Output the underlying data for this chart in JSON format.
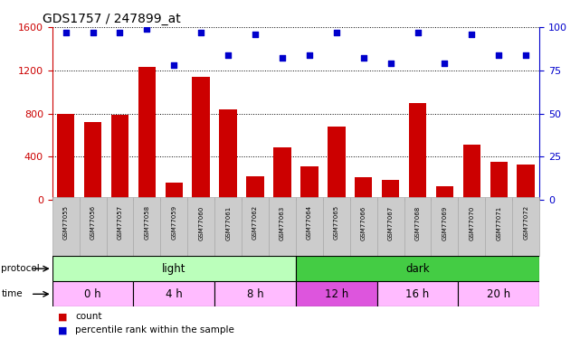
{
  "title": "GDS1757 / 247899_at",
  "samples": [
    "GSM77055",
    "GSM77056",
    "GSM77057",
    "GSM77058",
    "GSM77059",
    "GSM77060",
    "GSM77061",
    "GSM77062",
    "GSM77063",
    "GSM77064",
    "GSM77065",
    "GSM77066",
    "GSM77067",
    "GSM77068",
    "GSM77069",
    "GSM77070",
    "GSM77071",
    "GSM77072"
  ],
  "counts": [
    800,
    720,
    790,
    1230,
    160,
    1140,
    840,
    220,
    490,
    310,
    680,
    210,
    185,
    900,
    130,
    510,
    350,
    330
  ],
  "percentile": [
    97,
    97,
    97,
    99,
    78,
    97,
    84,
    96,
    82,
    84,
    97,
    82,
    79,
    97,
    79,
    96,
    84,
    84
  ],
  "bar_color": "#cc0000",
  "scatter_color": "#0000cc",
  "ylim_left": [
    0,
    1600
  ],
  "ylim_right": [
    0,
    100
  ],
  "yticks_left": [
    0,
    400,
    800,
    1200,
    1600
  ],
  "yticks_right": [
    0,
    25,
    50,
    75,
    100
  ],
  "ylabel_left_color": "#cc0000",
  "ylabel_right_color": "#0000cc",
  "background_color": "#ffffff",
  "proto_regions": [
    {
      "label": "light",
      "start": 0,
      "end": 9,
      "color": "#bbffbb"
    },
    {
      "label": "dark",
      "start": 9,
      "end": 18,
      "color": "#44cc44"
    }
  ],
  "time_regions": [
    {
      "label": "0 h",
      "start": 0,
      "end": 3,
      "color": "#ffbbff"
    },
    {
      "label": "4 h",
      "start": 3,
      "end": 6,
      "color": "#ffbbff"
    },
    {
      "label": "8 h",
      "start": 6,
      "end": 9,
      "color": "#ffbbff"
    },
    {
      "label": "12 h",
      "start": 9,
      "end": 12,
      "color": "#dd55dd"
    },
    {
      "label": "16 h",
      "start": 12,
      "end": 15,
      "color": "#ffbbff"
    },
    {
      "label": "20 h",
      "start": 15,
      "end": 18,
      "color": "#ffbbff"
    }
  ],
  "legend_count_color": "#cc0000",
  "legend_percentile_color": "#0000cc"
}
